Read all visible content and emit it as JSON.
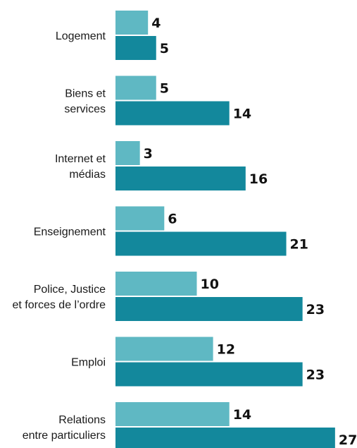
{
  "colors": {
    "series_light": "#5fb8c3",
    "series_dark": "#13889c"
  },
  "chart_data": {
    "type": "bar",
    "orientation": "horizontal",
    "title": "",
    "xlabel": "",
    "ylabel": "",
    "grid": false,
    "legend": "none",
    "xlim": [
      0,
      27
    ],
    "categories": [
      [
        "Logement"
      ],
      [
        "Biens et",
        "services"
      ],
      [
        "Internet et",
        "médias"
      ],
      [
        "Enseignement"
      ],
      [
        "Police, Justice",
        "et forces de l’ordre"
      ],
      [
        "Emploi"
      ],
      [
        "Relations",
        "entre particuliers"
      ]
    ],
    "series": [
      {
        "values": [
          4,
          5,
          3,
          6,
          10,
          12,
          14
        ]
      },
      {
        "values": [
          5,
          14,
          16,
          21,
          23,
          23,
          27
        ]
      }
    ]
  }
}
